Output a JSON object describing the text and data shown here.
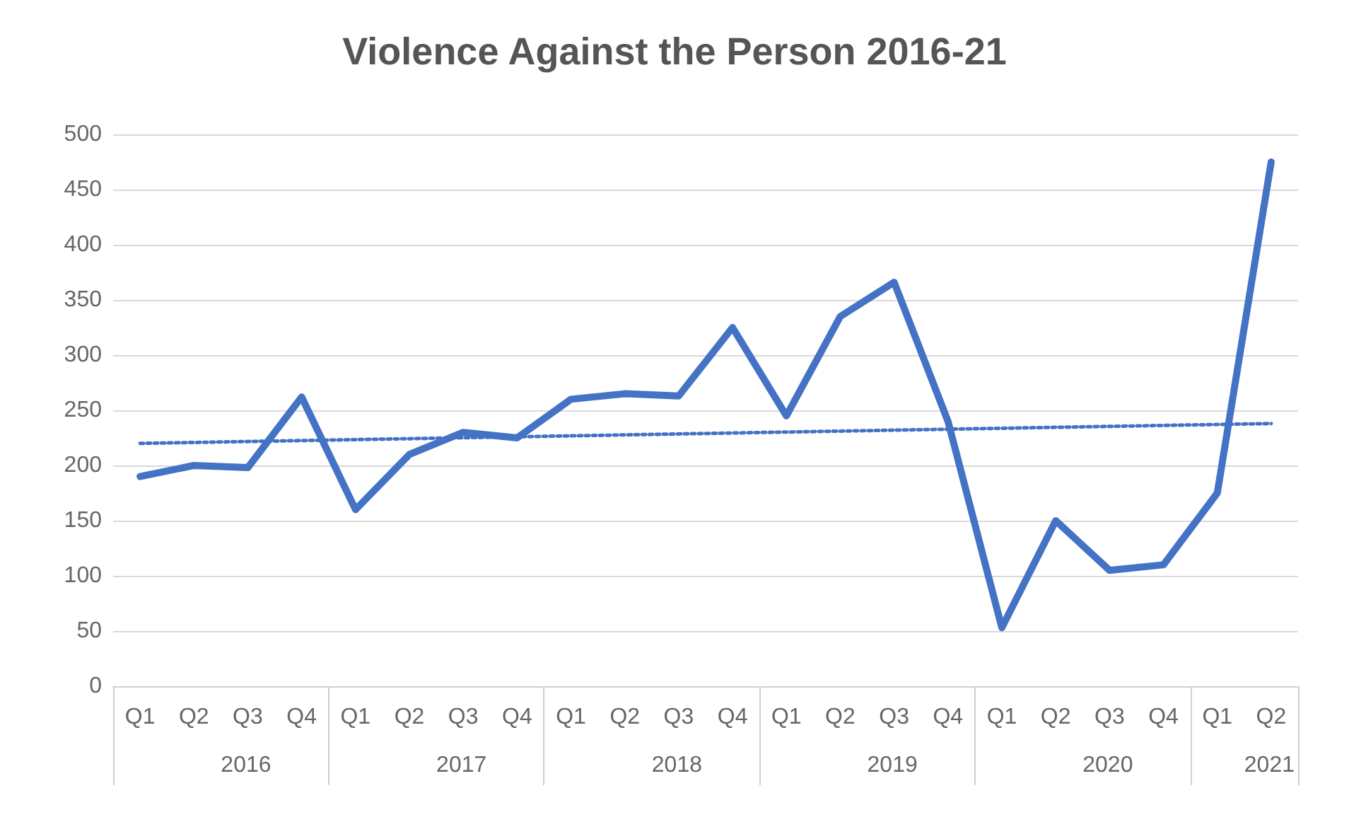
{
  "chart_data": {
    "type": "line",
    "title": "Violence Against the Person 2016-21",
    "categories": [
      "Q1",
      "Q2",
      "Q3",
      "Q4",
      "Q1",
      "Q2",
      "Q3",
      "Q4",
      "Q1",
      "Q2",
      "Q3",
      "Q4",
      "Q1",
      "Q2",
      "Q3",
      "Q4",
      "Q1",
      "Q2",
      "Q3",
      "Q4",
      "Q1",
      "Q2"
    ],
    "annotations": [
      "2016",
      "2017",
      "2018",
      "2019",
      "2020",
      "2021"
    ],
    "series": [
      {
        "color": "#4472c4",
        "line_style": "solid",
        "values": [
          190,
          200,
          198,
          262,
          160,
          210,
          230,
          225,
          260,
          265,
          263,
          325,
          245,
          335,
          366,
          240,
          53,
          150,
          105,
          110,
          175,
          475
        ]
      },
      {
        "color": "#4472c4",
        "line_style": "dotted",
        "values": [
          220,
          null,
          null,
          null,
          null,
          null,
          null,
          null,
          null,
          null,
          null,
          null,
          null,
          null,
          null,
          null,
          null,
          null,
          null,
          null,
          null,
          238
        ]
      }
    ],
    "ylim": [
      0,
      500
    ],
    "yticks": [
      0,
      50,
      100,
      150,
      200,
      250,
      300,
      350,
      400,
      450,
      500
    ],
    "grid": "y",
    "marker": "none"
  }
}
